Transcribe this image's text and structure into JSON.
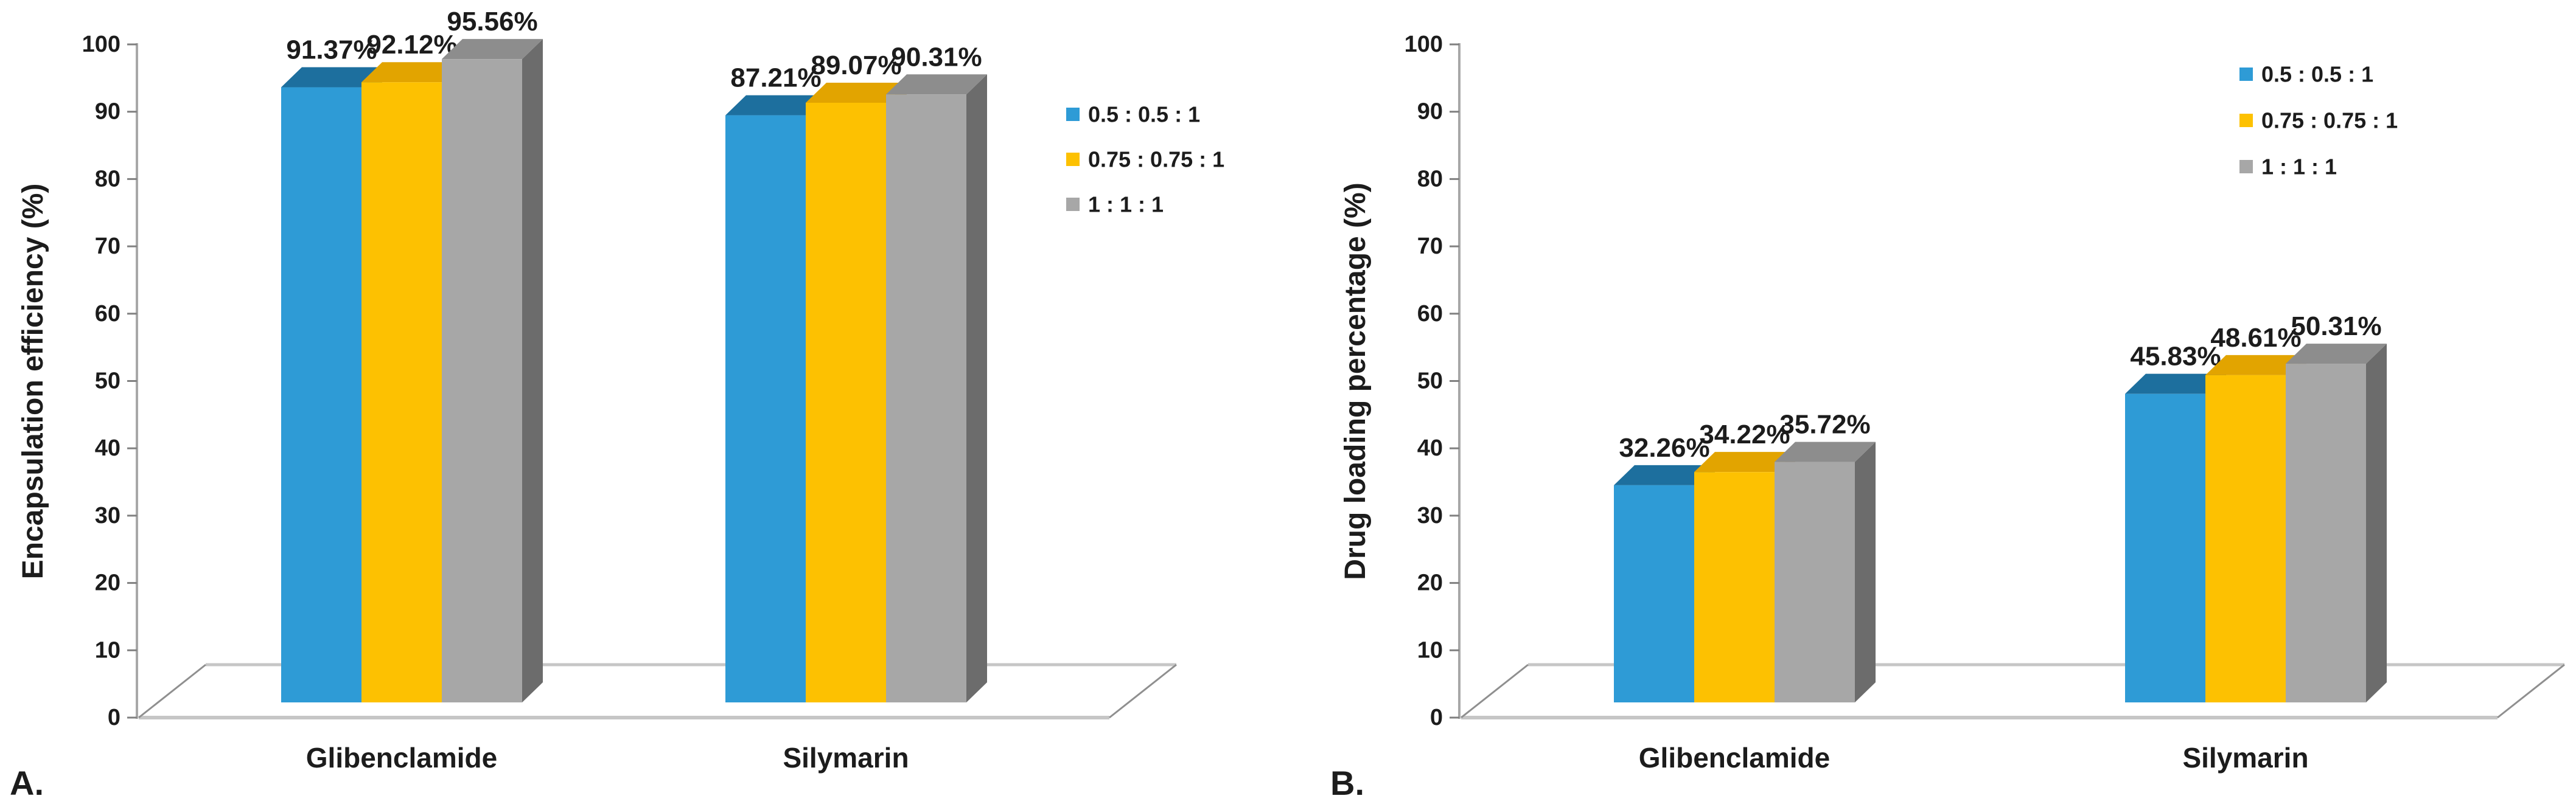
{
  "figure": {
    "background": "#FFFFFF",
    "panels": [
      {
        "corner_label": "A."
      },
      {
        "corner_label": "B."
      }
    ]
  },
  "chart_data": [
    {
      "type": "bar",
      "style": "3d-column",
      "panel": "A",
      "title": "",
      "xlabel": "",
      "ylabel": "Encapsulation efficiency (%)",
      "ylim": [
        0,
        100
      ],
      "ytick_step": 10,
      "ytick_labels": [
        "0",
        "10",
        "20",
        "30",
        "40",
        "50",
        "60",
        "70",
        "80",
        "90",
        "100"
      ],
      "grid": false,
      "legend_position": "right",
      "categories": [
        "Glibenclamide",
        "Silymarin"
      ],
      "series": [
        {
          "name": "0.5 : 0.5 : 1",
          "values": [
            91.37,
            87.21
          ],
          "labels": [
            "91.37%",
            "87.21%"
          ]
        },
        {
          "name": "0.75 : 0.75 : 1",
          "values": [
            92.12,
            89.07
          ],
          "labels": [
            "92.12%",
            "89.07%"
          ]
        },
        {
          "name": "1 : 1 : 1",
          "values": [
            95.56,
            90.31
          ],
          "labels": [
            "95.56%",
            "90.31%"
          ]
        }
      ]
    },
    {
      "type": "bar",
      "style": "3d-column",
      "panel": "B",
      "title": "",
      "xlabel": "",
      "ylabel": "Drug loading percentage (%)",
      "ylim": [
        0,
        100
      ],
      "ytick_step": 10,
      "ytick_labels": [
        "0",
        "10",
        "20",
        "30",
        "40",
        "50",
        "60",
        "70",
        "80",
        "90",
        "100"
      ],
      "grid": false,
      "legend_position": "top-right",
      "categories": [
        "Glibenclamide",
        "Silymarin"
      ],
      "series": [
        {
          "name": "0.5 : 0.5 : 1",
          "values": [
            32.26,
            45.83
          ],
          "labels": [
            "32.26%",
            "45.83%"
          ]
        },
        {
          "name": "0.75 : 0.75 : 1",
          "values": [
            34.22,
            48.61
          ],
          "labels": [
            "34.22%",
            "48.61%"
          ]
        },
        {
          "name": "1 : 1 : 1",
          "values": [
            35.72,
            50.31
          ],
          "labels": [
            "35.72%",
            "50.31%"
          ]
        }
      ]
    }
  ],
  "colors": {
    "series": [
      {
        "name": "0.5 : 0.5 : 1",
        "front": "#2E9BD6",
        "top": "#1D6F9E",
        "side": "#14567C"
      },
      {
        "name": "0.75 : 0.75 : 1",
        "front": "#FDC101",
        "top": "#E2A400",
        "side": "#AD7F00"
      },
      {
        "name": "1 : 1 : 1",
        "front": "#A7A7A7",
        "top": "#8D8D8D",
        "side": "#6C6C6C"
      }
    ],
    "axis_line": "#A8A8A8",
    "tick_mark": "#808080",
    "floor_edge_light": "#C6C6C6",
    "floor_edge_dark": "#8F8F8F",
    "text": "#1C1C1C"
  }
}
